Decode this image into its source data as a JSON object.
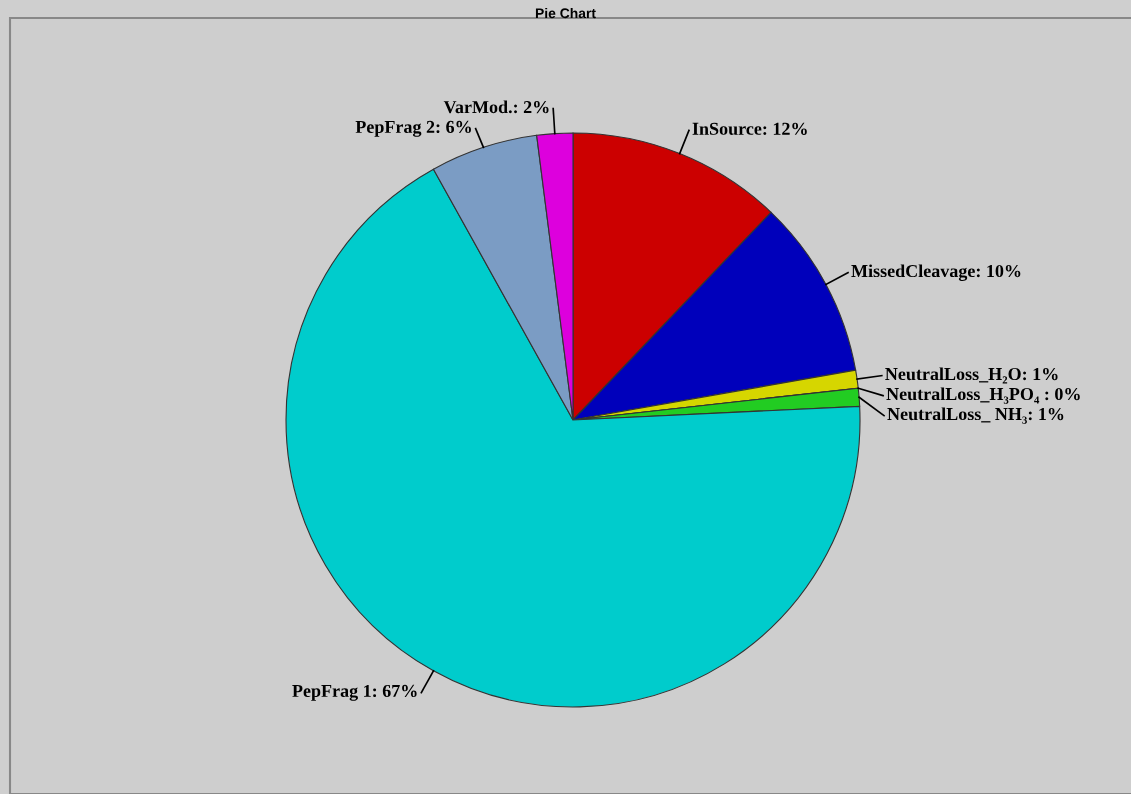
{
  "chart_data": {
    "type": "pie",
    "title": "Pie Chart",
    "categories": [
      "InSource",
      "MissedCleavage",
      "NeutralLoss_H₂O",
      "NeutralLoss_H₃PO₄ ",
      "NeutralLoss_ NH₃",
      "PepFrag 1",
      "PepFrag 2",
      "VarMod."
    ],
    "values": [
      12,
      10,
      1,
      0,
      1,
      67,
      6,
      2
    ],
    "value_labels": [
      "12%",
      "10%",
      "1%",
      "0%",
      "1%",
      "67%",
      "6%",
      "2%"
    ],
    "colors": [
      "#cc0000",
      "#0000bb",
      "#d6d600",
      "#e08000",
      "#22cc22",
      "#00cccc",
      "#7b9cc4",
      "#dd00dd"
    ]
  }
}
